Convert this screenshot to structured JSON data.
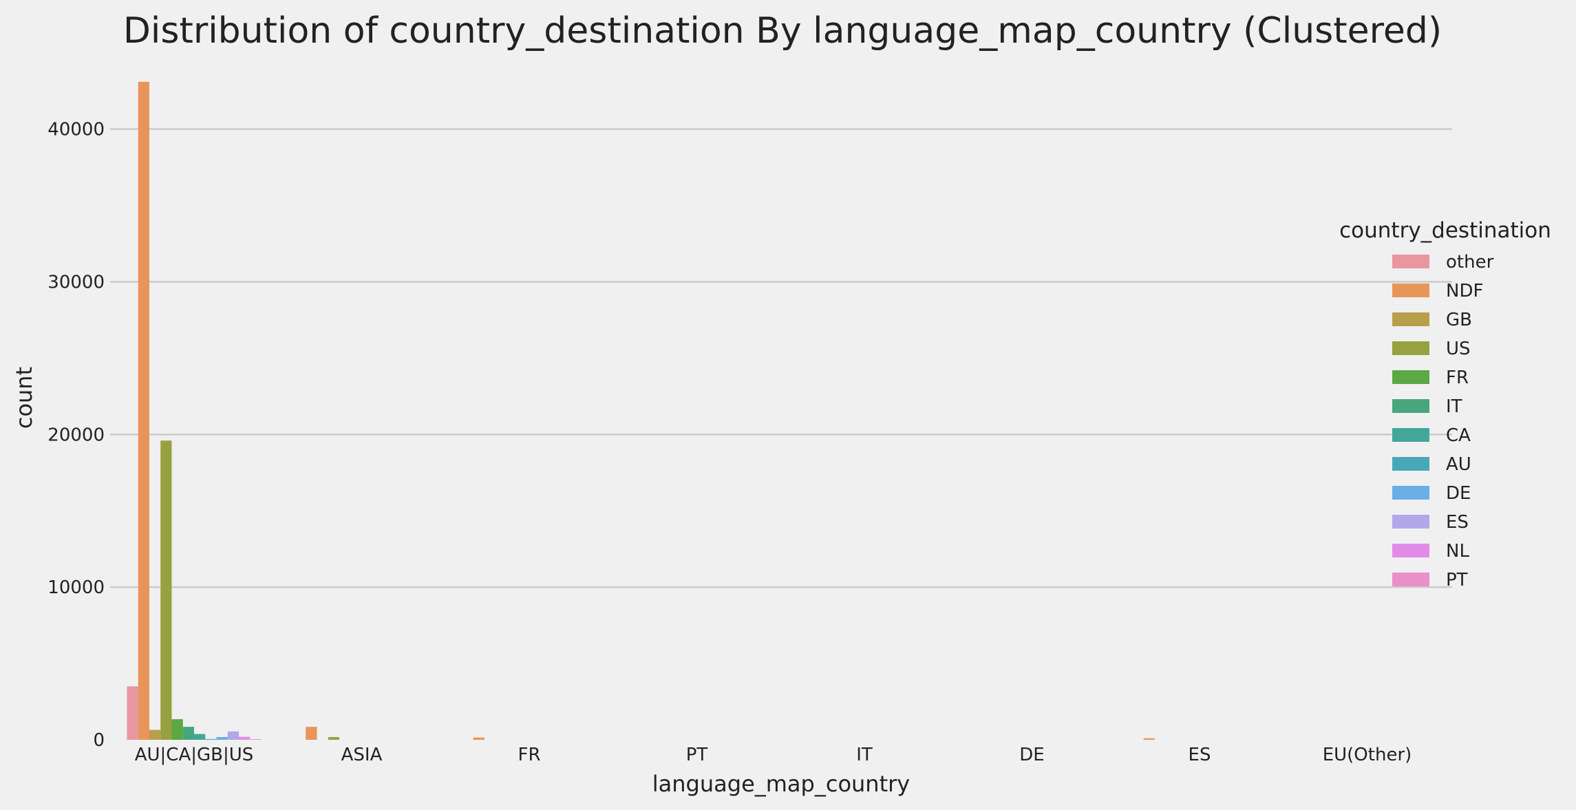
{
  "chart_data": {
    "type": "bar",
    "title": "Distribution of country_destination By language_map_country (Clustered)",
    "xlabel": "language_map_country",
    "ylabel": "count",
    "ylim": [
      0,
      43500
    ],
    "yticks": [
      0,
      10000,
      20000,
      30000,
      40000
    ],
    "grid": true,
    "legend_position": "right",
    "legend_title": "country_destination",
    "categories": [
      "AU|CA|GB|US",
      "ASIA",
      "FR",
      "PT",
      "IT",
      "DE",
      "ES",
      "EU(Other)"
    ],
    "series": [
      {
        "name": "other",
        "color": "#e8969f",
        "values": [
          3500,
          0,
          0,
          0,
          0,
          0,
          0,
          0
        ]
      },
      {
        "name": "NDF",
        "color": "#e8955a",
        "values": [
          43100,
          850,
          150,
          0,
          0,
          0,
          100,
          0
        ]
      },
      {
        "name": "GB",
        "color": "#b8a04a",
        "values": [
          650,
          0,
          0,
          0,
          0,
          0,
          0,
          0
        ]
      },
      {
        "name": "US",
        "color": "#98a13f",
        "values": [
          19600,
          180,
          0,
          0,
          0,
          0,
          0,
          0
        ]
      },
      {
        "name": "FR",
        "color": "#5ba845",
        "values": [
          1350,
          0,
          0,
          0,
          0,
          0,
          0,
          0
        ]
      },
      {
        "name": "IT",
        "color": "#47a67e",
        "values": [
          850,
          0,
          0,
          0,
          0,
          0,
          0,
          0
        ]
      },
      {
        "name": "CA",
        "color": "#45a69a",
        "values": [
          380,
          0,
          0,
          0,
          0,
          0,
          0,
          0
        ]
      },
      {
        "name": "AU",
        "color": "#48a8b8",
        "values": [
          50,
          0,
          0,
          0,
          0,
          0,
          0,
          0
        ]
      },
      {
        "name": "DE",
        "color": "#6aaee6",
        "values": [
          180,
          0,
          0,
          0,
          0,
          0,
          0,
          0
        ]
      },
      {
        "name": "ES",
        "color": "#b1a8ea",
        "values": [
          550,
          0,
          0,
          0,
          0,
          0,
          0,
          0
        ]
      },
      {
        "name": "NL",
        "color": "#e28cea",
        "values": [
          200,
          0,
          0,
          0,
          0,
          0,
          0,
          0
        ]
      },
      {
        "name": "PT",
        "color": "#ea8fc8",
        "values": [
          40,
          0,
          0,
          0,
          0,
          0,
          0,
          0
        ]
      }
    ]
  }
}
